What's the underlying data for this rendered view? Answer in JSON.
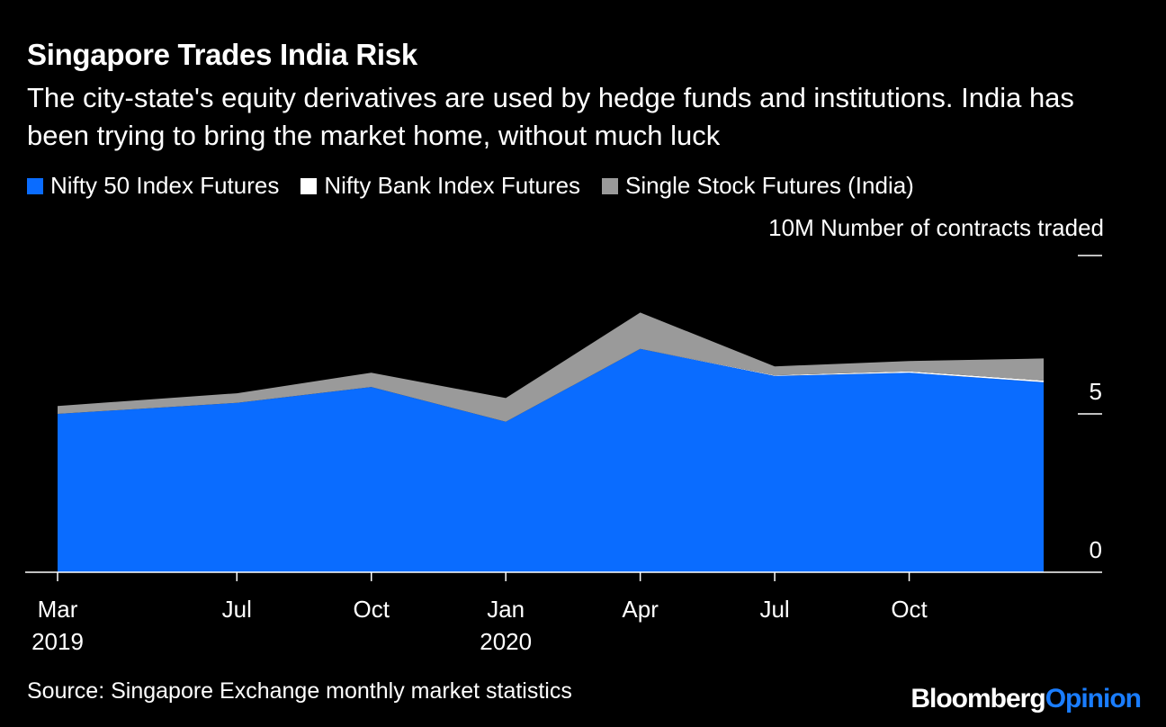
{
  "header": {
    "title": "Singapore Trades India Risk",
    "subtitle": "The city-state's equity derivatives are used by hedge funds and institutions. India has been trying to bring the market home, without much luck"
  },
  "footer": {
    "source": "Source: Singapore Exchange monthly market statistics",
    "brand_main": "Bloomberg",
    "brand_accent": "Opinion"
  },
  "colors": {
    "background": "#000000",
    "nifty50": "#0a6cff",
    "niftybank": "#ffffff",
    "singlestock": "#9a9a9a",
    "text": "#ffffff"
  },
  "chart_data": {
    "type": "area",
    "stacked": true,
    "unit_label": "10M Number of contracts traded",
    "ylim": [
      0,
      10
    ],
    "yticks": [
      {
        "value": 0,
        "label": "0"
      },
      {
        "value": 5,
        "label": "5"
      },
      {
        "value": 10,
        "label": "10M"
      }
    ],
    "x_labels": [
      {
        "month": 0,
        "line1": "Mar",
        "line2": "2019"
      },
      {
        "month": 4,
        "line1": "Jul",
        "line2": ""
      },
      {
        "month": 7,
        "line1": "Oct",
        "line2": ""
      },
      {
        "month": 10,
        "line1": "Jan",
        "line2": "2020"
      },
      {
        "month": 13,
        "line1": "Apr",
        "line2": ""
      },
      {
        "month": 16,
        "line1": "Jul",
        "line2": ""
      },
      {
        "month": 19,
        "line1": "Oct",
        "line2": ""
      }
    ],
    "x": [
      0,
      4,
      7,
      10,
      13,
      16,
      19,
      22
    ],
    "x_range": [
      0,
      22
    ],
    "legend_position": "top-left",
    "series": [
      {
        "name": "Nifty 50 Index Futures",
        "color": "#0a6cff",
        "values": [
          5.0,
          5.35,
          5.85,
          4.75,
          7.05,
          6.2,
          6.3,
          6.0
        ]
      },
      {
        "name": "Nifty Bank Index Futures",
        "color": "#ffffff",
        "values": [
          0.0,
          0.0,
          0.0,
          0.0,
          0.0,
          0.02,
          0.04,
          0.05
        ]
      },
      {
        "name": "Single Stock Futures (India)",
        "color": "#9a9a9a",
        "values": [
          0.25,
          0.3,
          0.45,
          0.75,
          1.15,
          0.28,
          0.33,
          0.7
        ]
      }
    ]
  }
}
